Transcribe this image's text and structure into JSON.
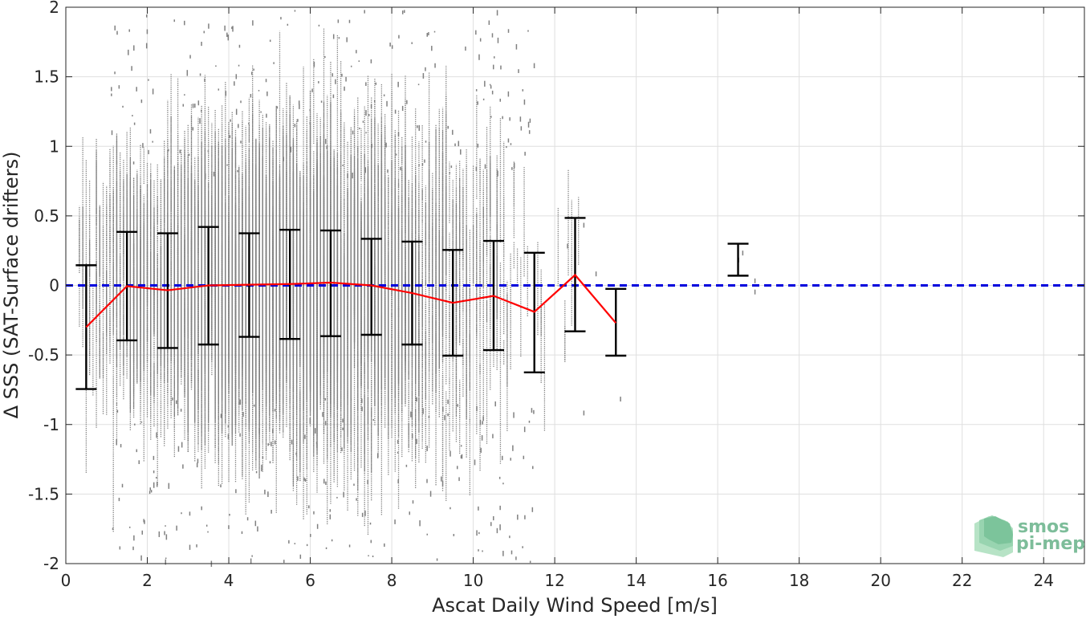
{
  "chart_data": {
    "type": "scatter",
    "title": "",
    "xlabel": "Ascat Daily Wind Speed [m/s]",
    "ylabel": "Δ SSS (SAT-Surface drifters)",
    "xlim": [
      0,
      25
    ],
    "ylim": [
      -2,
      2
    ],
    "xticks": [
      0,
      2,
      4,
      6,
      8,
      10,
      12,
      14,
      16,
      18,
      20,
      22,
      24
    ],
    "yticks": [
      -2,
      -1.5,
      -1,
      -0.5,
      0,
      0.5,
      1,
      1.5,
      2
    ],
    "xtick_labels": [
      "0",
      "2",
      "4",
      "6",
      "8",
      "10",
      "12",
      "14",
      "16",
      "18",
      "20",
      "22",
      "24"
    ],
    "ytick_labels": [
      "-2",
      "-1.5",
      "-1",
      "-0.5",
      "0",
      "0.5",
      "1",
      "1.5",
      "2"
    ],
    "grid": true,
    "colors": {
      "scatter": "#808080",
      "mean_line": "#ff0000",
      "error_bars": "#000000",
      "zero_line": "#0000dd"
    },
    "reference_line": {
      "y": 0,
      "style": "dashed"
    },
    "scatter_cloud": {
      "description_note": "",
      "x_range": [
        0.3,
        17
      ],
      "density_center_x": 5.5
    },
    "series": [
      {
        "type": "line",
        "x": [
          0.5,
          1.5,
          2.5,
          3.5,
          4.5,
          5.5,
          6.5,
          7.5,
          8.5,
          9.5,
          10.5,
          11.5,
          12.5,
          13.5
        ],
        "y": [
          -0.3,
          -0.005,
          -0.035,
          0.0,
          0.005,
          0.01,
          0.02,
          0.0,
          -0.055,
          -0.125,
          -0.075,
          -0.19,
          0.075,
          -0.27
        ]
      },
      {
        "type": "errorbar",
        "x": [
          0.5,
          1.5,
          2.5,
          3.5,
          4.5,
          5.5,
          6.5,
          7.5,
          8.5,
          9.5,
          10.5,
          11.5,
          12.5,
          13.5,
          16.5
        ],
        "low": [
          -0.745,
          -0.395,
          -0.45,
          -0.425,
          -0.37,
          -0.385,
          -0.365,
          -0.355,
          -0.425,
          -0.505,
          -0.465,
          -0.625,
          -0.33,
          -0.505,
          0.07
        ],
        "high": [
          0.145,
          0.385,
          0.375,
          0.42,
          0.375,
          0.4,
          0.395,
          0.335,
          0.315,
          0.255,
          0.32,
          0.235,
          0.485,
          -0.025,
          0.3
        ]
      }
    ]
  },
  "logo": {
    "line1": "smos",
    "line2": "pi-mep"
  }
}
